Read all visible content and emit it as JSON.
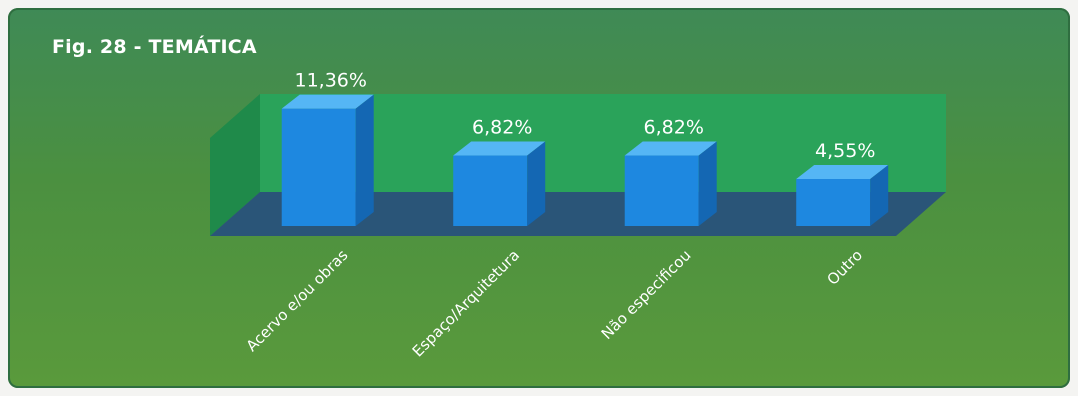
{
  "chart_data": {
    "type": "bar",
    "title": "Fig. 28 - TEMÁTICA",
    "categories": [
      "Acervo e/ou obras",
      "Espaço/Arquitetura",
      "Não especificou",
      "Outro"
    ],
    "values": [
      11.36,
      6.82,
      6.82,
      4.55
    ],
    "data_labels": [
      "11,36%",
      "6,82%",
      "6,82%",
      "4,55%"
    ],
    "unit": "%",
    "ylim": [
      0,
      30
    ],
    "grid": false,
    "legend": "none",
    "three_d": true,
    "colors": {
      "bar_front": "#1e88e0",
      "bar_top": "#55b6f5",
      "bar_side": "#1467b3",
      "back_wall": "#2aa35a",
      "side_wall": "#1f8a4a",
      "floor": "#2a5578",
      "text": "#ffffff"
    }
  }
}
